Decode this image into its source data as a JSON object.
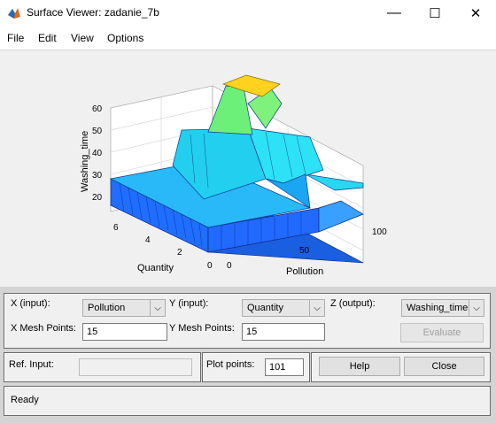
{
  "window": {
    "title": "Surface Viewer: zadanie_7b",
    "minimize": "—",
    "maximize": "☐",
    "close": "✕"
  },
  "menu": [
    "File",
    "Edit",
    "View",
    "Options"
  ],
  "plot": {
    "zlabel": "Washing_time",
    "xlabel": "Pollution",
    "ylabel": "Quantity",
    "z_ticks": [
      "60",
      "50",
      "40",
      "30",
      "20"
    ],
    "x_ticks": [
      "0",
      "50",
      "100"
    ],
    "y_ticks": [
      "6",
      "4",
      "2",
      "0"
    ],
    "colors": {
      "low": "#1e6bff",
      "mid": "#29d7f2",
      "high": "#7ef27a",
      "top": "#ffd21f"
    }
  },
  "controls": {
    "x_input_label": "X (input):",
    "x_input_value": "Pollution",
    "y_input_label": "Y (input):",
    "y_input_value": "Quantity",
    "z_output_label": "Z (output):",
    "z_output_value": "Washing_time",
    "x_mesh_label": "X Mesh Points:",
    "x_mesh_value": "15",
    "y_mesh_label": "Y Mesh Points:",
    "y_mesh_value": "15",
    "evaluate_label": "Evaluate",
    "ref_input_label": "Ref. Input:",
    "ref_input_value": "",
    "plot_points_label": "Plot points:",
    "plot_points_value": "101",
    "help_label": "Help",
    "close_label": "Close"
  },
  "status": {
    "text": "Ready"
  }
}
